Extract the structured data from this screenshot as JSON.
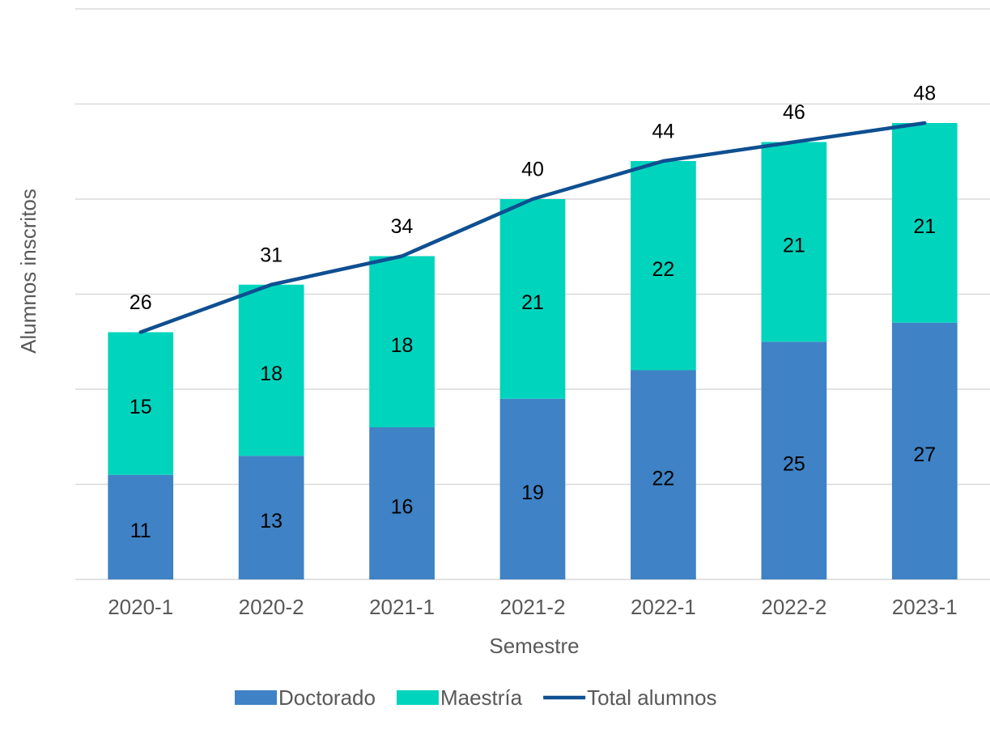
{
  "chart_data": {
    "type": "bar",
    "xlabel": "Semestre",
    "ylabel": "Alumnos inscritos",
    "categories": [
      "2020-1",
      "2020-2",
      "2021-1",
      "2021-2",
      "2022-1",
      "2022-2",
      "2023-1"
    ],
    "series": [
      {
        "name": "Doctorado",
        "type": "bar",
        "color": "#3f82c5",
        "values": [
          11,
          13,
          16,
          19,
          22,
          25,
          27
        ]
      },
      {
        "name": "Maestría",
        "type": "bar",
        "color": "#00d4bd",
        "values": [
          15,
          18,
          18,
          21,
          22,
          21,
          21
        ]
      },
      {
        "name": "Total alumnos",
        "type": "line",
        "color": "#0e4f91",
        "values": [
          26,
          31,
          34,
          40,
          44,
          46,
          48
        ]
      }
    ],
    "stacked": true,
    "ylim": [
      0,
      60
    ],
    "yticks": [
      0,
      10,
      20,
      30,
      40,
      50,
      60
    ],
    "grid": true,
    "legend": "bottom"
  }
}
